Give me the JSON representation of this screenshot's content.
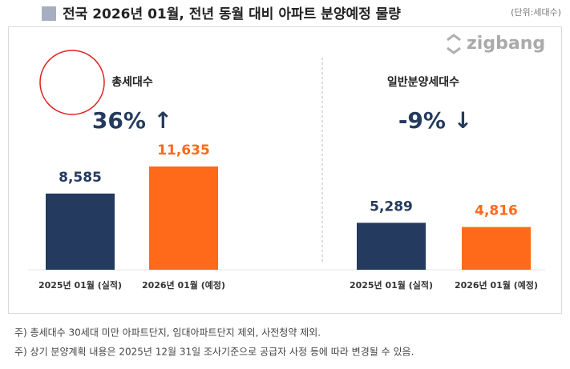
{
  "title": "전국 2026년 01월, 전년 동월 대비 아파트 분양예정 물량",
  "unit": "(단위:세대수)",
  "logo": "zigbang",
  "chart_data": [
    {
      "type": "bar",
      "title": "총세대수",
      "change": "36% ↑",
      "categories": [
        "2025년 01월 (실적)",
        "2026년 01월 (예정)"
      ],
      "values": [
        8585,
        11635
      ],
      "value_labels": [
        "8,585",
        "11,635"
      ],
      "colors": [
        "#243a5e",
        "#ff6a1a"
      ]
    },
    {
      "type": "bar",
      "title": "일반분양세대수",
      "change": "-9% ↓",
      "categories": [
        "2025년 01월 (실적)",
        "2026년 01월 (예정)"
      ],
      "values": [
        5289,
        4816
      ],
      "value_labels": [
        "5,289",
        "4,816"
      ],
      "colors": [
        "#243a5e",
        "#ff6a1a"
      ]
    }
  ],
  "notes": [
    "주) 총세대수 30세대 미만 아파트단지, 임대아파트단지 제외, 사전청약 제외.",
    "주) 상기 분양계획 내용은 2025년 12월 31일 조사기준으로 공급자 사정 등에 따라 변경될 수 있음."
  ]
}
